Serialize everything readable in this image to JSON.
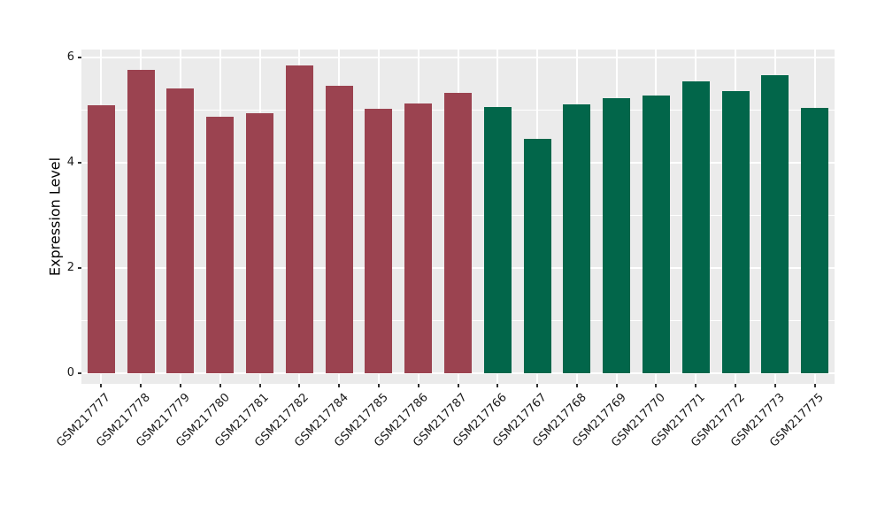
{
  "chart_data": {
    "type": "bar",
    "title": "",
    "xlabel": "",
    "ylabel": "Expression Level",
    "ylim": [
      0,
      6.15
    ],
    "yticks": [
      0,
      2,
      4,
      6
    ],
    "yticks_minor": [
      1,
      3,
      5
    ],
    "grid": "on",
    "legend_position": "none",
    "panel_background": "#EBEBEB",
    "gridline_color": "#FFFFFF",
    "tick_color": "#333333",
    "text_color": "#1A1A1A",
    "x_label_angle": 45,
    "series": [
      {
        "color": "#9B4350",
        "categories": [
          "GSM217777",
          "GSM217778",
          "GSM217779",
          "GSM217780",
          "GSM217781",
          "GSM217782",
          "GSM217784",
          "GSM217785",
          "GSM217786",
          "GSM217787"
        ],
        "values": [
          5.1,
          5.76,
          5.41,
          4.87,
          4.94,
          5.85,
          5.47,
          5.03,
          5.13,
          5.32
        ]
      },
      {
        "color": "#02664A",
        "categories": [
          "GSM217766",
          "GSM217767",
          "GSM217768",
          "GSM217769",
          "GSM217770",
          "GSM217771",
          "GSM217772",
          "GSM217773",
          "GSM217775"
        ],
        "values": [
          5.06,
          4.45,
          5.11,
          5.23,
          5.27,
          5.55,
          5.36,
          5.67,
          5.05
        ]
      }
    ]
  }
}
